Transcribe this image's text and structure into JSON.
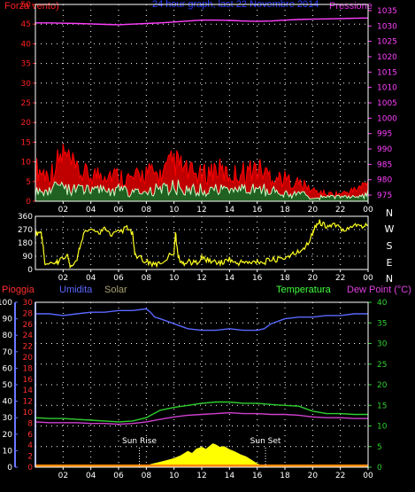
{
  "header": {
    "title": "24 hour graph, last 22 Novembre 2014"
  },
  "colors": {
    "wind": "#ff2020",
    "gust": "#ff0000",
    "avgwind": "#40ff40",
    "pressure": "#ff40ff",
    "dir": "#ffff20",
    "rain": "#ff3030",
    "humidity": "#5a68ff",
    "solar": "#c8c000",
    "temperature": "#30d030",
    "dewpoint": "#d040d0",
    "axis": "#6a78ff",
    "grid": "#ffffff"
  },
  "chart_data": [
    {
      "type": "line",
      "left_label": "Forza vento)",
      "right_label": "Pressione",
      "x_ticks": [
        "02",
        "04",
        "06",
        "08",
        "10",
        "12",
        "14",
        "16",
        "18",
        "20",
        "22",
        "00"
      ],
      "left_ticks": [
        "0",
        "5",
        "10",
        "15",
        "20",
        "25",
        "30",
        "35",
        "40",
        "45",
        "50"
      ],
      "right_ticks": [
        "975",
        "980",
        "985",
        "990",
        "995",
        "1000",
        "1005",
        "1010",
        "1015",
        "1020",
        "1025",
        "1030",
        "1035"
      ],
      "left_ylim": [
        0,
        50
      ],
      "right_ylim": [
        973,
        1037
      ],
      "grid": true,
      "series": [
        {
          "name": "Pressione",
          "axis": "right",
          "x": [
            0,
            1,
            2,
            3,
            4,
            5,
            6,
            7,
            8,
            9,
            10,
            11,
            12,
            13,
            14,
            15,
            16,
            17,
            18,
            19,
            20,
            21,
            22,
            23,
            24
          ],
          "values": [
            1031.0,
            1031.0,
            1030.9,
            1030.8,
            1030.7,
            1030.5,
            1030.4,
            1030.6,
            1030.8,
            1031.0,
            1031.3,
            1031.6,
            1031.9,
            1031.9,
            1031.8,
            1031.6,
            1031.5,
            1031.6,
            1031.9,
            1032.1,
            1032.2,
            1032.3,
            1032.4,
            1032.5,
            1032.6
          ]
        },
        {
          "name": "",
          "axis": "left",
          "role": "gust",
          "x": [
            0,
            1,
            2,
            3,
            4,
            5,
            6,
            7,
            8,
            9,
            10,
            11,
            12,
            13,
            14,
            15,
            16,
            17,
            18,
            19,
            20,
            21,
            22,
            23,
            24
          ],
          "values": [
            9,
            7,
            13,
            8,
            7,
            8,
            7,
            6,
            8,
            7,
            11,
            8,
            7,
            9,
            7,
            8,
            9,
            7,
            6,
            5,
            3,
            2,
            2,
            3,
            5
          ]
        },
        {
          "name": "",
          "axis": "left",
          "role": "average",
          "x": [
            0,
            1,
            2,
            3,
            4,
            5,
            6,
            7,
            8,
            9,
            10,
            11,
            12,
            13,
            14,
            15,
            16,
            17,
            18,
            19,
            20,
            21,
            22,
            23,
            24
          ],
          "values": [
            3,
            3,
            4,
            3,
            3,
            3,
            3,
            2,
            3,
            3,
            4,
            3,
            3,
            3,
            3,
            3,
            3,
            3,
            2,
            2,
            1,
            1,
            1,
            1,
            2
          ]
        }
      ]
    },
    {
      "type": "line",
      "left_ticks": [
        "0",
        "90",
        "180",
        "270",
        "360"
      ],
      "compass": [
        "N",
        "W",
        "S",
        "E",
        "N"
      ],
      "ylim": [
        0,
        360
      ],
      "x_ticks": [
        "02",
        "04",
        "06",
        "08",
        "10",
        "12",
        "14",
        "16",
        "18",
        "20",
        "22",
        "00"
      ],
      "series": [
        {
          "name": "",
          "x": [
            0,
            0.4,
            0.5,
            0.7,
            1.5,
            1.7,
            2.3,
            2.5,
            3.0,
            3.3,
            3.6,
            4.5,
            5.0,
            5.5,
            6.0,
            6.6,
            7.0,
            7.2,
            8.0,
            8.5,
            9.0,
            10.0,
            10.1,
            10.3,
            10.6,
            11.0,
            11.5,
            12.0,
            12.5,
            13.0,
            13.5,
            14.0,
            14.5,
            15.0,
            15.5,
            16.0,
            16.5,
            17.0,
            17.5,
            18.0,
            18.5,
            19.0,
            19.5,
            20.0,
            20.2,
            20.5,
            21.0,
            21.5,
            22.0,
            22.5,
            23.0,
            23.5,
            24.0
          ],
          "values": [
            240,
            260,
            200,
            30,
            40,
            50,
            100,
            30,
            60,
            200,
            260,
            250,
            270,
            240,
            250,
            280,
            240,
            90,
            60,
            30,
            40,
            120,
            250,
            80,
            40,
            60,
            40,
            80,
            60,
            50,
            45,
            70,
            40,
            55,
            40,
            60,
            50,
            65,
            70,
            80,
            100,
            120,
            160,
            240,
            300,
            320,
            290,
            300,
            280,
            270,
            310,
            290,
            300
          ]
        }
      ]
    },
    {
      "type": "line",
      "labels": {
        "rain": "Pioggia",
        "humidity": "Umidita",
        "solar": "Solar",
        "temperature": "Temperatura",
        "dewpoint": "Dew Point (°C)"
      },
      "left_ticks": [
        "0",
        "10",
        "20",
        "30",
        "40",
        "50",
        "60",
        "70",
        "80",
        "90",
        "100"
      ],
      "rain_ticks": [
        "0",
        "2",
        "4",
        "6",
        "8",
        "10",
        "12",
        "14",
        "16",
        "18",
        "20",
        "22",
        "24",
        "26",
        "28",
        "30"
      ],
      "right_ticks": [
        "0",
        "5",
        "10",
        "15",
        "20",
        "25",
        "30",
        "35",
        "40"
      ],
      "left_ylim": [
        0,
        100
      ],
      "right_ylim": [
        0,
        40
      ],
      "x_ticks": [
        "02",
        "04",
        "06",
        "08",
        "10",
        "12",
        "14",
        "16",
        "18",
        "20",
        "22",
        "00"
      ],
      "annotations": [
        {
          "text": "Sun Rise",
          "x": 7.5
        },
        {
          "text": "Sun Set",
          "x": 16.6
        }
      ],
      "series": [
        {
          "name": "Umidita",
          "axis": "left",
          "x": [
            0,
            1,
            2,
            3,
            4,
            5,
            6,
            7,
            8,
            8.3,
            8.6,
            9,
            10,
            11,
            12,
            13,
            14,
            15,
            16,
            16.5,
            17,
            18,
            19,
            20,
            21,
            22,
            23,
            24
          ],
          "values": [
            93,
            93,
            92,
            93,
            94,
            94,
            95,
            95,
            96,
            94,
            91,
            90,
            87,
            84,
            83,
            83,
            84,
            83,
            83,
            84,
            87,
            90,
            91,
            91,
            92,
            92,
            93,
            93
          ]
        },
        {
          "name": "Temperatura",
          "axis": "right",
          "x": [
            0,
            1,
            2,
            3,
            4,
            5,
            6,
            7,
            8,
            9,
            10,
            11,
            12,
            13,
            14,
            15,
            16,
            17,
            18,
            19,
            20,
            21,
            22,
            23,
            24
          ],
          "values": [
            12.0,
            11.8,
            11.8,
            11.6,
            11.4,
            11.2,
            11.0,
            11.2,
            12.0,
            13.8,
            14.5,
            15.0,
            15.5,
            15.8,
            15.8,
            15.5,
            15.5,
            15.2,
            15.0,
            14.8,
            13.6,
            13.0,
            13.0,
            12.8,
            12.8
          ]
        },
        {
          "name": "Dew Point (°C)",
          "axis": "right",
          "x": [
            0,
            1,
            2,
            3,
            4,
            5,
            6,
            7,
            8,
            9,
            10,
            11,
            12,
            13,
            14,
            15,
            16,
            17,
            18,
            19,
            20,
            21,
            22,
            23,
            24
          ],
          "values": [
            11.0,
            10.8,
            10.8,
            10.8,
            10.6,
            10.6,
            10.4,
            10.6,
            11.0,
            11.6,
            12.2,
            12.6,
            12.8,
            13.0,
            13.2,
            13.0,
            13.0,
            12.8,
            12.8,
            12.6,
            12.2,
            12.0,
            12.0,
            11.8,
            11.8
          ]
        },
        {
          "name": "Solar",
          "axis": "left",
          "x": [
            0,
            7.5,
            8.0,
            8.5,
            9.0,
            9.5,
            10.0,
            10.5,
            11.0,
            11.3,
            11.6,
            12.0,
            12.3,
            12.6,
            12.8,
            13.0,
            13.3,
            13.6,
            14.0,
            14.4,
            14.8,
            15.2,
            15.6,
            16.0,
            16.6,
            24
          ],
          "values": [
            0,
            0,
            1,
            2,
            3,
            4,
            5,
            7,
            9,
            8,
            11,
            12,
            10,
            13,
            14,
            13,
            11,
            12,
            10,
            9,
            7,
            6,
            4,
            2,
            0,
            0
          ]
        },
        {
          "name": "Pioggia",
          "axis": "rain",
          "x": [
            0,
            24
          ],
          "values": [
            0,
            0
          ]
        }
      ]
    }
  ]
}
